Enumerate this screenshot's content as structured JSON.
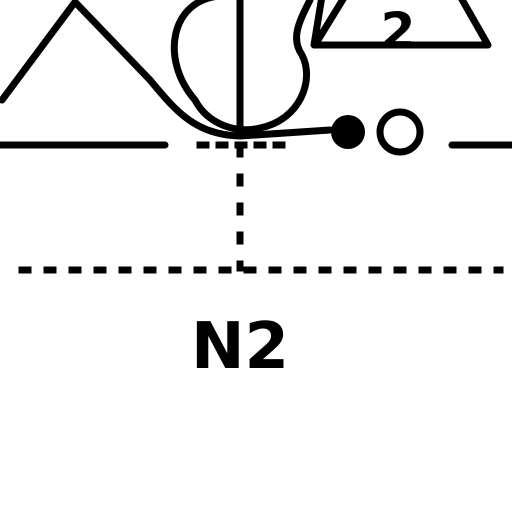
{
  "diagram": {
    "node_label": "N2",
    "triangle_label": "2",
    "colors": {
      "ink": "#000000",
      "background": "#ffffff"
    },
    "symbols": [
      "ground-triangle-icon",
      "pump-valve-icon",
      "solid-dot-icon",
      "hollow-dot-icon"
    ]
  }
}
